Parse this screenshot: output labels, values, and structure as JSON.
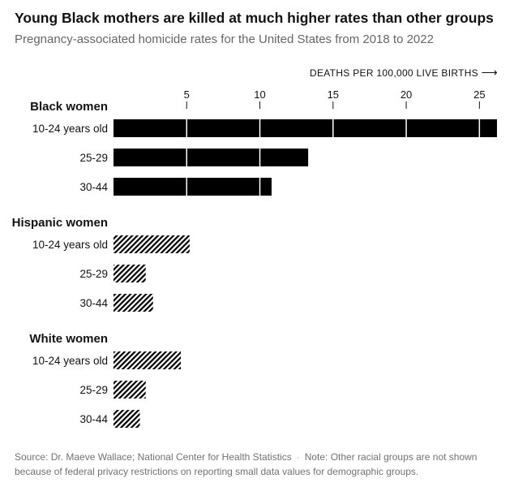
{
  "title": "Young Black mothers are killed at much higher rates than other groups",
  "subtitle": "Pregnancy-associated homicide rates for the United States from 2018 to 2022",
  "chart_data": {
    "type": "bar",
    "orientation": "horizontal",
    "axis_label": "DEATHS PER 100,000 LIVE BIRTHS",
    "axis_arrow": "⟶",
    "ticks": [
      5,
      10,
      15,
      20,
      25
    ],
    "xlim": [
      0,
      26.2
    ],
    "groups": [
      {
        "name": "Black women",
        "fill": "solid",
        "color": "#000000",
        "bars": [
          {
            "label": "10-24 years old",
            "value": 26.2
          },
          {
            "label": "25-29",
            "value": 13.3
          },
          {
            "label": "30-44",
            "value": 10.8
          }
        ]
      },
      {
        "name": "Hispanic women",
        "fill": "hatched",
        "color": "#000000",
        "bars": [
          {
            "label": "10-24 years old",
            "value": 5.2
          },
          {
            "label": "25-29",
            "value": 2.2
          },
          {
            "label": "30-44",
            "value": 2.7
          }
        ]
      },
      {
        "name": "White women",
        "fill": "hatched",
        "color": "#000000",
        "bars": [
          {
            "label": "10-24 years old",
            "value": 4.6
          },
          {
            "label": "25-29",
            "value": 2.2
          },
          {
            "label": "30-44",
            "value": 1.8
          }
        ]
      }
    ]
  },
  "footer": {
    "source": "Source: Dr. Maeve Wallace; National Center for Health Statistics",
    "separator": "·",
    "note": "Note: Other racial groups are not shown because of federal privacy restrictions on reporting small data values for demographic groups."
  }
}
